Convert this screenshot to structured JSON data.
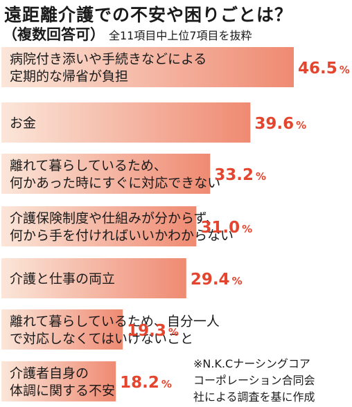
{
  "title": "遠距離介護での不安や困りごとは？",
  "subtitle": {
    "main": "（複数回答可）",
    "note": "全11項目中上位7項目を抜粋"
  },
  "colors": {
    "bar_start": "#fbe6d9",
    "bar_end": "#ef8a72",
    "value_text": "#e3452e",
    "text": "#1a1a1a"
  },
  "chart_data": {
    "type": "bar",
    "orientation": "horizontal",
    "unit": "%",
    "categories": [
      [
        "病院付き添いや手続きなどによる",
        "定期的な帰省が負担"
      ],
      [
        "お金"
      ],
      [
        "離れて暮らしているため、",
        "何かあった時にすぐに対応できない"
      ],
      [
        "介護保険制度や仕組みが分からず、",
        "何から手を付ければいいかわからない"
      ],
      [
        "介護と仕事の両立"
      ],
      [
        "離れて暮らしているため、自分一人",
        "で対応しなくてはいけないこと"
      ],
      [
        "介護者自身の",
        "体調に関する不安"
      ]
    ],
    "values": [
      46.5,
      39.6,
      33.2,
      31.0,
      29.4,
      19.3,
      18.2
    ],
    "value_labels": [
      "46.5",
      "39.6",
      "33.2",
      "31.0",
      "29.4",
      "19.3",
      "18.2"
    ],
    "percent_sign": "%",
    "xlim": [
      0,
      46.5
    ],
    "grid": false,
    "legend": "none"
  },
  "source": [
    "※N.K.Cナーシングコア",
    "コーポレーション合同会",
    "社による調査を基に作成"
  ]
}
